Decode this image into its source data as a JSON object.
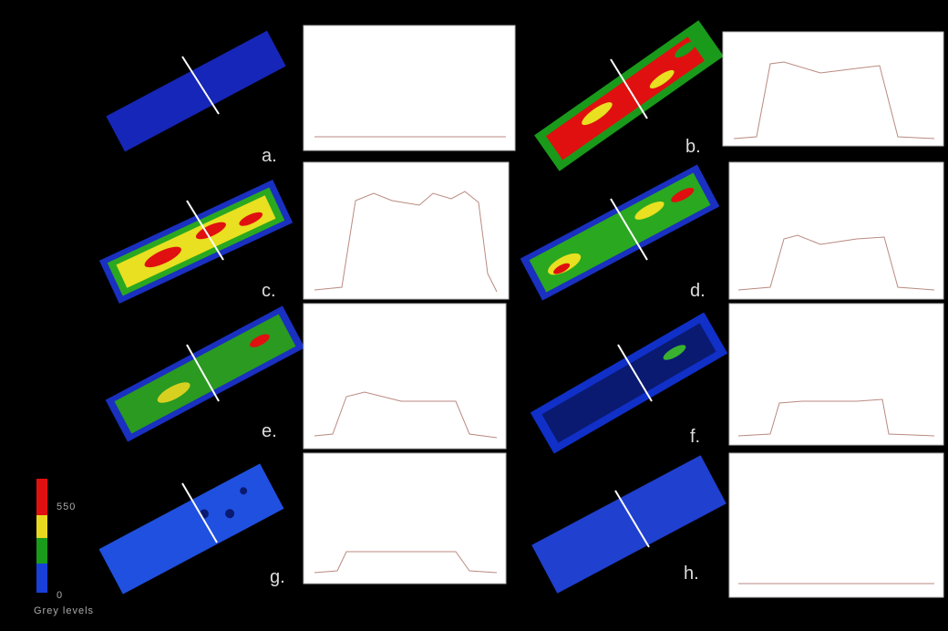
{
  "panels": [
    {
      "label": "a."
    },
    {
      "label": "b."
    },
    {
      "label": "c."
    },
    {
      "label": "d."
    },
    {
      "label": "e."
    },
    {
      "label": "f."
    },
    {
      "label": "g."
    },
    {
      "label": "h."
    }
  ],
  "legend": {
    "max": "550",
    "min": "0",
    "title": "Grey levels"
  }
}
